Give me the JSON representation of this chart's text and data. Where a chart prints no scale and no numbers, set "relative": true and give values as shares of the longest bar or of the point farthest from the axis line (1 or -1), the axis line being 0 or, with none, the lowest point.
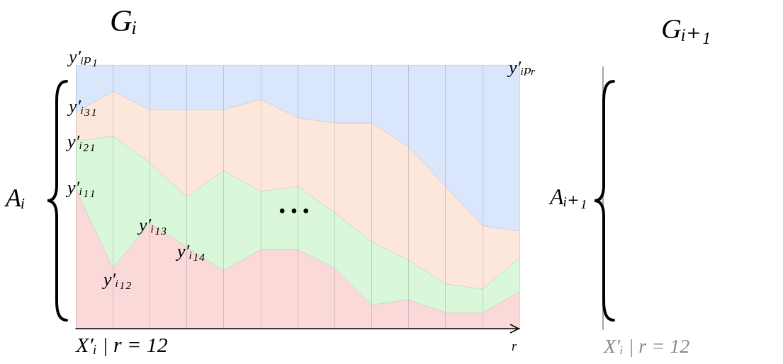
{
  "chart_data": [
    {
      "type": "area",
      "title": "Gᵢ",
      "ylabel": "Aᵢ",
      "xlabel": "X′ᵢ | r = 12",
      "relative": true,
      "stacked": true,
      "grid": "x",
      "marker": "none",
      "categories": [
        null,
        null,
        null,
        null,
        null,
        null,
        null,
        null,
        null,
        null,
        null,
        null,
        null
      ],
      "annotations": [
        "y′ᵢₚ₁",
        "y′ᵢ₃₁",
        "y′ᵢ₂₁",
        "y′ᵢ₁₁",
        "y′ᵢ₁₂",
        "y′ᵢ₁₃",
        "y′ᵢ₁₄",
        "y′ᵢₚᵣ",
        "• • •",
        "r"
      ],
      "series": [
        {
          "color": "#fcd9d9",
          "values": [
            0.53,
            0.23,
            0.4,
            0.31,
            0.22,
            0.3,
            0.3,
            0.23,
            0.09,
            0.11,
            0.06,
            0.06,
            0.14
          ]
        },
        {
          "color": "#d9f7d9",
          "values": [
            0.18,
            0.5,
            0.23,
            0.19,
            0.38,
            0.22,
            0.24,
            0.21,
            0.24,
            0.15,
            0.11,
            0.09,
            0.13
          ]
        },
        {
          "color": "#fde7da",
          "values": [
            0.11,
            0.17,
            0.2,
            0.33,
            0.23,
            0.35,
            0.26,
            0.34,
            0.45,
            0.43,
            0.37,
            0.24,
            0.1
          ]
        },
        {
          "color": "#d9e6fc",
          "values": [
            0.18,
            0.1,
            0.17,
            0.17,
            0.17,
            0.13,
            0.2,
            0.22,
            0.22,
            0.31,
            0.46,
            0.61,
            0.63
          ]
        }
      ]
    },
    {
      "type": "other",
      "title": "Gᵢ₊₁",
      "ylabel": "Aᵢ₊₁",
      "xlabel": "X′ᵢ | r = 12"
    }
  ]
}
